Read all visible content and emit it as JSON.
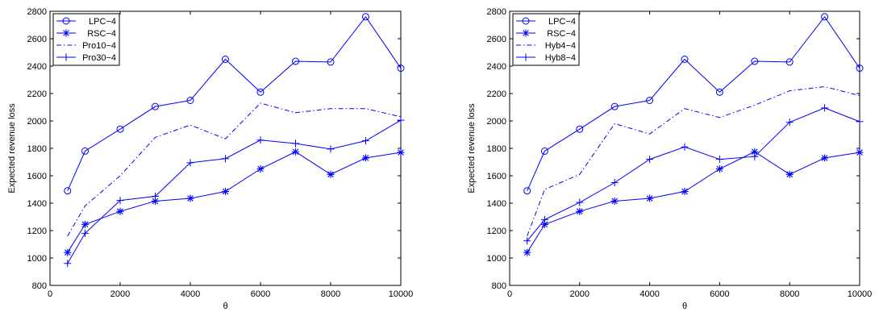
{
  "chart_data": [
    {
      "type": "line",
      "title": "",
      "xlabel": "θ",
      "ylabel": "Expected revenue loss",
      "xlim": [
        0,
        10000
      ],
      "ylim": [
        800,
        2800
      ],
      "xticks": [
        0,
        2000,
        4000,
        6000,
        8000,
        10000
      ],
      "yticks": [
        800,
        1000,
        1200,
        1400,
        1600,
        1800,
        2000,
        2200,
        2400,
        2600,
        2800
      ],
      "grid": false,
      "legend_position": "top-left",
      "line_color": "#0000ff",
      "x": [
        500,
        1000,
        2000,
        3000,
        4000,
        5000,
        6000,
        7000,
        8000,
        9000,
        10000
      ],
      "series": [
        {
          "name": "LPC−4",
          "marker": "circle",
          "dash": "solid",
          "values": [
            1490,
            1780,
            1940,
            2105,
            2150,
            2450,
            2210,
            2435,
            2430,
            2760,
            2385
          ]
        },
        {
          "name": "RSC−4",
          "marker": "star",
          "dash": "solid",
          "values": [
            1040,
            1245,
            1340,
            1415,
            1435,
            1485,
            1650,
            1775,
            1610,
            1730,
            1770
          ]
        },
        {
          "name": "Pro10−4",
          "marker": "none",
          "dash": "dashdot",
          "values": [
            1160,
            1380,
            1600,
            1880,
            1970,
            1870,
            2130,
            2060,
            2090,
            2090,
            2030
          ]
        },
        {
          "name": "Pro30−4",
          "marker": "plus",
          "dash": "solid",
          "values": [
            960,
            1180,
            1420,
            1450,
            1695,
            1725,
            1860,
            1835,
            1795,
            1855,
            2005
          ]
        }
      ]
    },
    {
      "type": "line",
      "title": "",
      "xlabel": "θ",
      "ylabel": "Expected revenue loss",
      "xlim": [
        0,
        10000
      ],
      "ylim": [
        800,
        2800
      ],
      "xticks": [
        0,
        2000,
        4000,
        6000,
        8000,
        10000
      ],
      "yticks": [
        800,
        1000,
        1200,
        1400,
        1600,
        1800,
        2000,
        2200,
        2400,
        2600,
        2800
      ],
      "grid": false,
      "legend_position": "top-left",
      "line_color": "#0000ff",
      "x": [
        500,
        1000,
        2000,
        3000,
        4000,
        5000,
        6000,
        7000,
        8000,
        9000,
        10000
      ],
      "series": [
        {
          "name": "LPC−4",
          "marker": "circle",
          "dash": "solid",
          "values": [
            1490,
            1780,
            1940,
            2105,
            2150,
            2450,
            2210,
            2435,
            2430,
            2760,
            2385
          ]
        },
        {
          "name": "RSC−4",
          "marker": "star",
          "dash": "solid",
          "values": [
            1040,
            1245,
            1340,
            1415,
            1435,
            1485,
            1650,
            1775,
            1610,
            1730,
            1770
          ]
        },
        {
          "name": "Hyb4−4",
          "marker": "none",
          "dash": "dashdot",
          "values": [
            1160,
            1500,
            1610,
            1980,
            1905,
            2090,
            2025,
            2115,
            2220,
            2250,
            2185
          ]
        },
        {
          "name": "Hyb8−4",
          "marker": "plus",
          "dash": "solid",
          "values": [
            1125,
            1280,
            1405,
            1550,
            1720,
            1810,
            1720,
            1740,
            1990,
            2095,
            1995
          ]
        }
      ]
    }
  ]
}
